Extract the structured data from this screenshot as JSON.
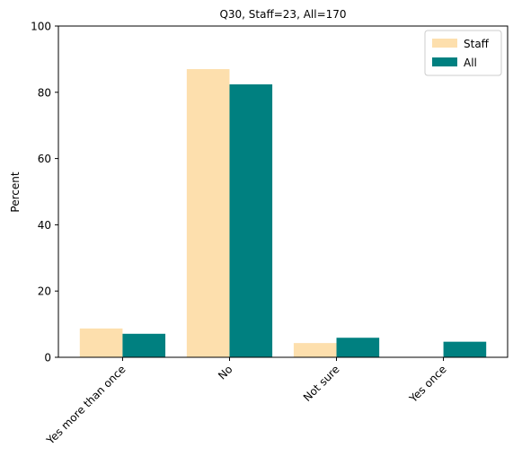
{
  "chart_data": {
    "type": "bar",
    "title": "Q30, Staff=23, All=170",
    "xlabel": "",
    "ylabel": "Percent",
    "categories": [
      "Yes more than once",
      "No",
      "Not sure",
      "Yes once"
    ],
    "series": [
      {
        "name": "Staff",
        "color": "#FDDFAD",
        "values": [
          8.7,
          87.0,
          4.3,
          0.0
        ]
      },
      {
        "name": "All",
        "color": "#008080",
        "values": [
          7.1,
          82.4,
          5.9,
          4.7
        ]
      }
    ],
    "ylim": [
      0,
      100
    ],
    "yticks": [
      0,
      20,
      40,
      60,
      80,
      100
    ],
    "grid": false,
    "legend_position": "top-right"
  }
}
